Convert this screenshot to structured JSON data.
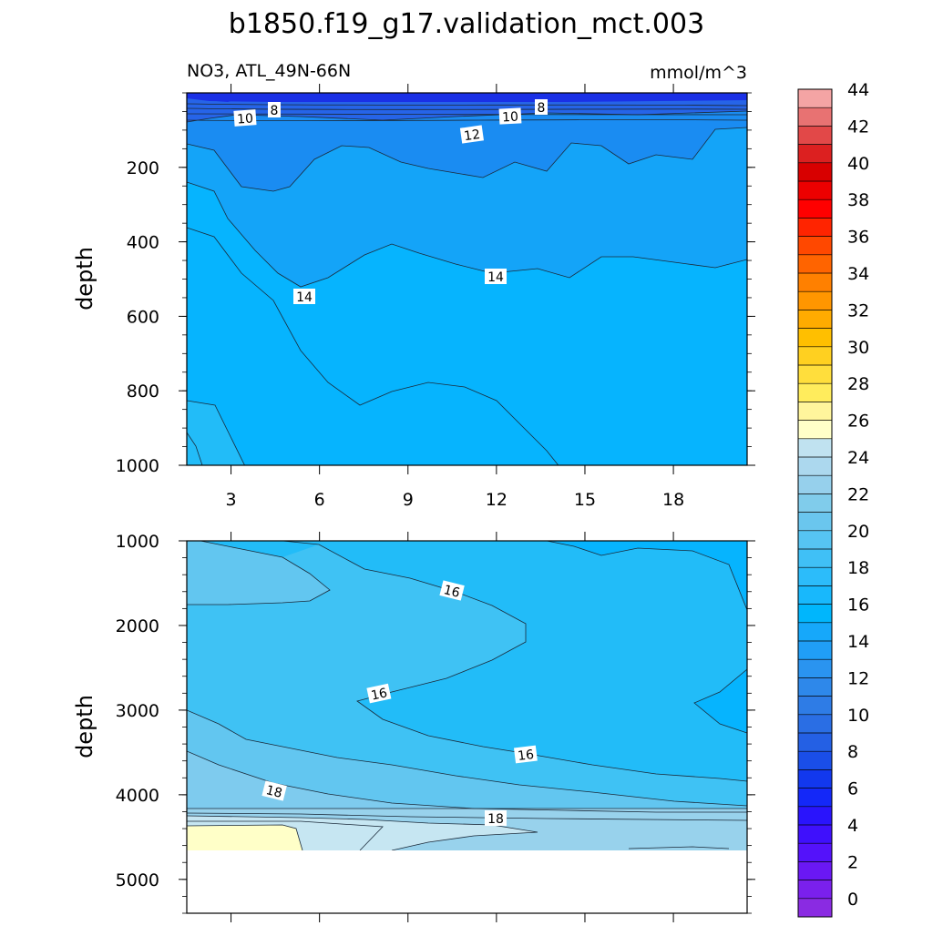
{
  "chart_data": {
    "type": "contour",
    "title": "b1850.f19_g17.validation_mct.003",
    "variable_label": "NO3, ATL_49N-66N",
    "units": "mmol/m^3",
    "ylabel": "depth",
    "x_ticks": [
      "3",
      "6",
      "9",
      "12",
      "15",
      "18"
    ],
    "x_range": [
      1.5,
      20.5
    ],
    "upper_panel": {
      "ylim": [
        0,
        1000
      ],
      "y_ticks": [
        "200",
        "400",
        "600",
        "800",
        "1000"
      ],
      "contour_labels": [
        "10",
        "8",
        "10",
        "8",
        "12",
        "14",
        "14"
      ]
    },
    "lower_panel": {
      "ylim": [
        1000,
        5400
      ],
      "y_ticks": [
        "1000",
        "2000",
        "3000",
        "4000",
        "5000"
      ],
      "contour_labels": [
        "16",
        "16",
        "16",
        "18",
        "18"
      ]
    },
    "colorbar": {
      "levels": [
        "0",
        "2",
        "4",
        "6",
        "8",
        "10",
        "12",
        "14",
        "16",
        "18",
        "20",
        "22",
        "24",
        "26",
        "28",
        "30",
        "32",
        "34",
        "36",
        "38",
        "40",
        "42",
        "44"
      ],
      "colors": [
        "#8a2be2",
        "#7a20ec",
        "#6a18f4",
        "#5412fa",
        "#3f10fc",
        "#2a14fc",
        "#1428f8",
        "#1238ee",
        "#1a4ee8",
        "#2460e4",
        "#2a6ee4",
        "#2e7ce6",
        "#2e88ea",
        "#2a94f0",
        "#209ef6",
        "#16a8fa",
        "#00b6fc",
        "#18b8fc",
        "#2cbcfa",
        "#40c0f6",
        "#56c4f2",
        "#6ac6ee",
        "#80cceb",
        "#96d0ec",
        "#acd8ee",
        "#c0e2f0",
        "#ffffc8",
        "#fff59c",
        "#ffec5c",
        "#ffde3c",
        "#ffd020",
        "#ffbf00",
        "#ffab00",
        "#ff9600",
        "#ff8000",
        "#ff6400",
        "#ff4800",
        "#ff2400",
        "#ff0000",
        "#ec0000",
        "#d80000",
        "#dc2020",
        "#e24848",
        "#e87272",
        "#f4a4a4"
      ]
    },
    "fill_colors": {
      "c6": "#1a30e6",
      "c8": "#2664e8",
      "c10": "#1a8cf2",
      "c12": "#14a4f8",
      "c13": "#06b4fe",
      "c14": "#22bcf8",
      "c15": "#3fc2f4",
      "c16": "#62c6f0",
      "c17": "#7ecbee",
      "c18": "#98d2ec",
      "c20": "#c6e6f2",
      "c22": "#ffffc8"
    }
  }
}
